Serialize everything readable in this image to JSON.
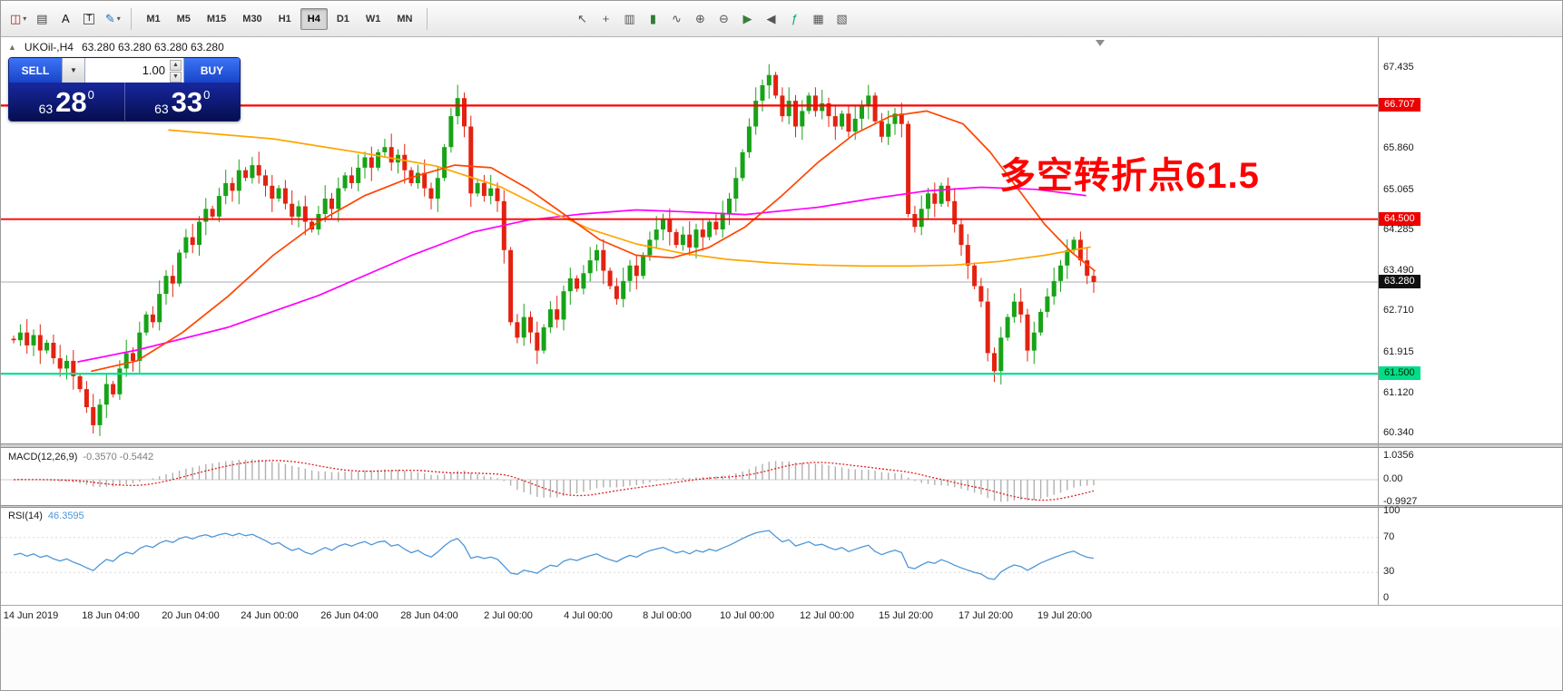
{
  "toolbar": {
    "caret_glyph": "▾",
    "left_icons": [
      {
        "name": "chart-tool-icon",
        "glyph": "◫",
        "color": "#b22222",
        "caret": true,
        "boxed": false
      },
      {
        "name": "profile-icon",
        "glyph": "▤",
        "color": "#444444",
        "caret": false,
        "boxed": false
      },
      {
        "name": "text-tool-icon",
        "glyph": "A",
        "color": "#111111",
        "caret": false,
        "boxed": false
      },
      {
        "name": "text-label-icon",
        "glyph": "T",
        "color": "#111111",
        "caret": false,
        "boxed": true
      },
      {
        "name": "drawing-tools-icon",
        "glyph": "✎",
        "color": "#1a6fb5",
        "caret": true,
        "boxed": false
      }
    ],
    "timeframes": [
      "M1",
      "M5",
      "M15",
      "M30",
      "H1",
      "H4",
      "D1",
      "W1",
      "MN"
    ],
    "active_timeframe": "H4",
    "right_icons": [
      {
        "name": "cursor-icon",
        "glyph": "↖",
        "color": "#555555"
      },
      {
        "name": "crosshair-icon",
        "glyph": "+",
        "color": "#555555"
      },
      {
        "name": "bar-chart-icon",
        "glyph": "▥",
        "color": "#555555"
      },
      {
        "name": "candlestick-chart-icon",
        "glyph": "▮",
        "color": "#2e7d32"
      },
      {
        "name": "line-chart-icon",
        "glyph": "∿",
        "color": "#555555"
      },
      {
        "name": "zoom-in-icon",
        "glyph": "⊕",
        "color": "#555555"
      },
      {
        "name": "zoom-out-icon",
        "glyph": "⊖",
        "color": "#555555"
      },
      {
        "name": "auto-scroll-icon",
        "glyph": "▶",
        "color": "#3a7d3a"
      },
      {
        "name": "chart-shift-icon",
        "glyph": "◀",
        "color": "#555555"
      },
      {
        "name": "indicators-icon",
        "glyph": "ƒ",
        "color": "#00aa66"
      },
      {
        "name": "tile-windows-icon",
        "glyph": "▦",
        "color": "#555555"
      },
      {
        "name": "templates-icon",
        "glyph": "▧",
        "color": "#555555"
      }
    ]
  },
  "chart_header": {
    "collapse_icon": "▲",
    "title": "UKOil-,H4",
    "ohlc": "63.280 63.280 63.280 63.280"
  },
  "trade_panel": {
    "sell_label": "SELL",
    "buy_label": "BUY",
    "volume": "1.00",
    "dropdown_icon": "▼",
    "spinner_up": "▲",
    "spinner_down": "▼",
    "sell_price_small": "63",
    "sell_price_big": "28",
    "sell_price_sup": "0",
    "buy_price_small": "63",
    "buy_price_big": "33",
    "buy_price_sup": "0"
  },
  "annotation": {
    "text": "多空转折点61.5",
    "color": "#ff0000"
  },
  "price_axis": [
    {
      "text": "67.435",
      "price": 67.435,
      "style": "plain"
    },
    {
      "text": "66.707",
      "price": 66.707,
      "style": "red"
    },
    {
      "text": "65.860",
      "price": 65.86,
      "style": "plain"
    },
    {
      "text": "65.065",
      "price": 65.065,
      "style": "plain"
    },
    {
      "text": "64.500",
      "price": 64.5,
      "style": "red"
    },
    {
      "text": "64.285",
      "price": 64.285,
      "style": "plain"
    },
    {
      "text": "63.490",
      "price": 63.49,
      "style": "plain"
    },
    {
      "text": "63.280",
      "price": 63.28,
      "style": "black"
    },
    {
      "text": "62.710",
      "price": 62.71,
      "style": "plain"
    },
    {
      "text": "61.915",
      "price": 61.915,
      "style": "plain"
    },
    {
      "text": "61.500",
      "price": 61.5,
      "style": "green"
    },
    {
      "text": "61.120",
      "price": 61.12,
      "style": "plain"
    },
    {
      "text": "60.340",
      "price": 60.34,
      "style": "plain"
    }
  ],
  "macd_panel": {
    "label": "MACD(12,26,9)",
    "values": "-0.3570 -0.5442",
    "axis": [
      {
        "text": "1.0356",
        "value": 1.0356
      },
      {
        "text": "0.00",
        "value": 0
      },
      {
        "text": "-0.9927",
        "value": -0.9927
      }
    ]
  },
  "rsi_panel": {
    "label": "RSI(14)",
    "value": "46.3595",
    "axis": [
      {
        "text": "100",
        "value": 100
      },
      {
        "text": "70",
        "value": 70
      },
      {
        "text": "30",
        "value": 30
      },
      {
        "text": "0",
        "value": 0
      }
    ],
    "levels": [
      70,
      30
    ]
  },
  "time_axis": [
    "14 Jun 2019",
    "18 Jun 04:00",
    "20 Jun 04:00",
    "24 Jun 00:00",
    "26 Jun 04:00",
    "28 Jun 04:00",
    "2 Jul 00:00",
    "4 Jul 00:00",
    "8 Jul 00:00",
    "10 Jul 00:00",
    "12 Jul 00:00",
    "15 Jul 20:00",
    "17 Jul 20:00",
    "19 Jul 20:00"
  ],
  "chart_data": {
    "type": "candlestick",
    "symbol": "UKOil-",
    "timeframe": "H4",
    "last_price": 63.28,
    "levels": {
      "resistance_upper": 66.707,
      "resistance_lower": 64.5,
      "support": 61.5,
      "current": 63.28
    },
    "colors": {
      "up": "#17a317",
      "down": "#e32210",
      "resistance": "#ff0000",
      "support": "#00e08f",
      "current_line": "#a9aeb4",
      "macd_hist": "#b0b0b0",
      "macd_signal": "#e02020",
      "rsi": "#4d96d9"
    },
    "closes": [
      62.15,
      62.3,
      62.05,
      62.25,
      61.95,
      62.1,
      61.8,
      61.6,
      61.75,
      61.45,
      61.2,
      60.85,
      60.5,
      60.9,
      61.3,
      61.1,
      61.6,
      61.9,
      61.75,
      62.3,
      62.65,
      62.5,
      63.05,
      63.4,
      63.25,
      63.85,
      64.15,
      64.0,
      64.45,
      64.7,
      64.55,
      64.95,
      65.2,
      65.05,
      65.45,
      65.3,
      65.55,
      65.35,
      65.15,
      64.9,
      65.1,
      64.8,
      64.55,
      64.75,
      64.45,
      64.3,
      64.6,
      64.9,
      64.7,
      65.1,
      65.35,
      65.2,
      65.5,
      65.7,
      65.5,
      65.8,
      65.9,
      65.6,
      65.75,
      65.45,
      65.2,
      65.4,
      65.1,
      64.9,
      65.3,
      65.9,
      66.5,
      66.85,
      66.3,
      65.0,
      65.2,
      64.95,
      65.1,
      64.85,
      63.9,
      62.5,
      62.2,
      62.6,
      62.3,
      61.95,
      62.4,
      62.75,
      62.55,
      63.1,
      63.35,
      63.15,
      63.45,
      63.7,
      63.9,
      63.5,
      63.2,
      62.95,
      63.3,
      63.6,
      63.4,
      63.8,
      64.1,
      64.3,
      64.5,
      64.25,
      64.0,
      64.2,
      63.95,
      64.3,
      64.15,
      64.45,
      64.3,
      64.6,
      64.9,
      65.3,
      65.8,
      66.3,
      66.8,
      67.1,
      67.3,
      66.9,
      66.5,
      66.8,
      66.3,
      66.6,
      66.9,
      66.6,
      66.75,
      66.5,
      66.3,
      66.55,
      66.2,
      66.45,
      66.7,
      66.9,
      66.4,
      66.1,
      66.35,
      66.55,
      66.35,
      64.6,
      64.35,
      64.7,
      65.0,
      64.8,
      65.15,
      64.85,
      64.4,
      64.0,
      63.6,
      63.2,
      62.9,
      61.9,
      61.55,
      62.2,
      62.6,
      62.9,
      62.65,
      61.95,
      62.3,
      62.7,
      63.0,
      63.3,
      63.6,
      63.9,
      64.1,
      63.7,
      63.4,
      63.28
    ],
    "moving_averages": [
      {
        "name": "ma-slow-magenta",
        "color": "#ff00ff",
        "points": [
          [
            85,
            61.73
          ],
          [
            150,
            61.96
          ],
          [
            250,
            62.4
          ],
          [
            350,
            63.02
          ],
          [
            450,
            63.78
          ],
          [
            520,
            64.25
          ],
          [
            580,
            64.48
          ],
          [
            640,
            64.6
          ],
          [
            700,
            64.68
          ],
          [
            760,
            64.64
          ],
          [
            820,
            64.59
          ],
          [
            900,
            64.73
          ],
          [
            960,
            64.9
          ],
          [
            1020,
            65.05
          ],
          [
            1080,
            65.12
          ],
          [
            1140,
            65.08
          ],
          [
            1195,
            64.96
          ]
        ]
      },
      {
        "name": "ma-mid-orange",
        "color": "#ffa500",
        "points": [
          [
            185,
            66.23
          ],
          [
            300,
            66.06
          ],
          [
            400,
            65.78
          ],
          [
            480,
            65.53
          ],
          [
            550,
            65.13
          ],
          [
            600,
            64.69
          ],
          [
            650,
            64.3
          ],
          [
            700,
            64.02
          ],
          [
            750,
            63.84
          ],
          [
            800,
            63.72
          ],
          [
            850,
            63.65
          ],
          [
            900,
            63.61
          ],
          [
            950,
            63.59
          ],
          [
            1000,
            63.59
          ],
          [
            1050,
            63.61
          ],
          [
            1100,
            63.68
          ],
          [
            1150,
            63.8
          ],
          [
            1200,
            63.96
          ]
        ]
      },
      {
        "name": "ma-fast-orangered",
        "color": "#ff4500",
        "points": [
          [
            100,
            61.55
          ],
          [
            150,
            61.75
          ],
          [
            200,
            62.3
          ],
          [
            250,
            63.0
          ],
          [
            300,
            63.8
          ],
          [
            350,
            64.45
          ],
          [
            400,
            64.95
          ],
          [
            450,
            65.3
          ],
          [
            500,
            65.55
          ],
          [
            540,
            65.5
          ],
          [
            580,
            65.1
          ],
          [
            620,
            64.6
          ],
          [
            660,
            64.1
          ],
          [
            700,
            63.8
          ],
          [
            740,
            63.75
          ],
          [
            780,
            63.95
          ],
          [
            820,
            64.35
          ],
          [
            860,
            64.95
          ],
          [
            900,
            65.6
          ],
          [
            940,
            66.15
          ],
          [
            980,
            66.5
          ],
          [
            1020,
            66.6
          ],
          [
            1060,
            66.35
          ],
          [
            1090,
            65.8
          ],
          [
            1120,
            65.1
          ],
          [
            1150,
            64.4
          ],
          [
            1180,
            63.85
          ],
          [
            1205,
            63.5
          ]
        ]
      }
    ]
  }
}
